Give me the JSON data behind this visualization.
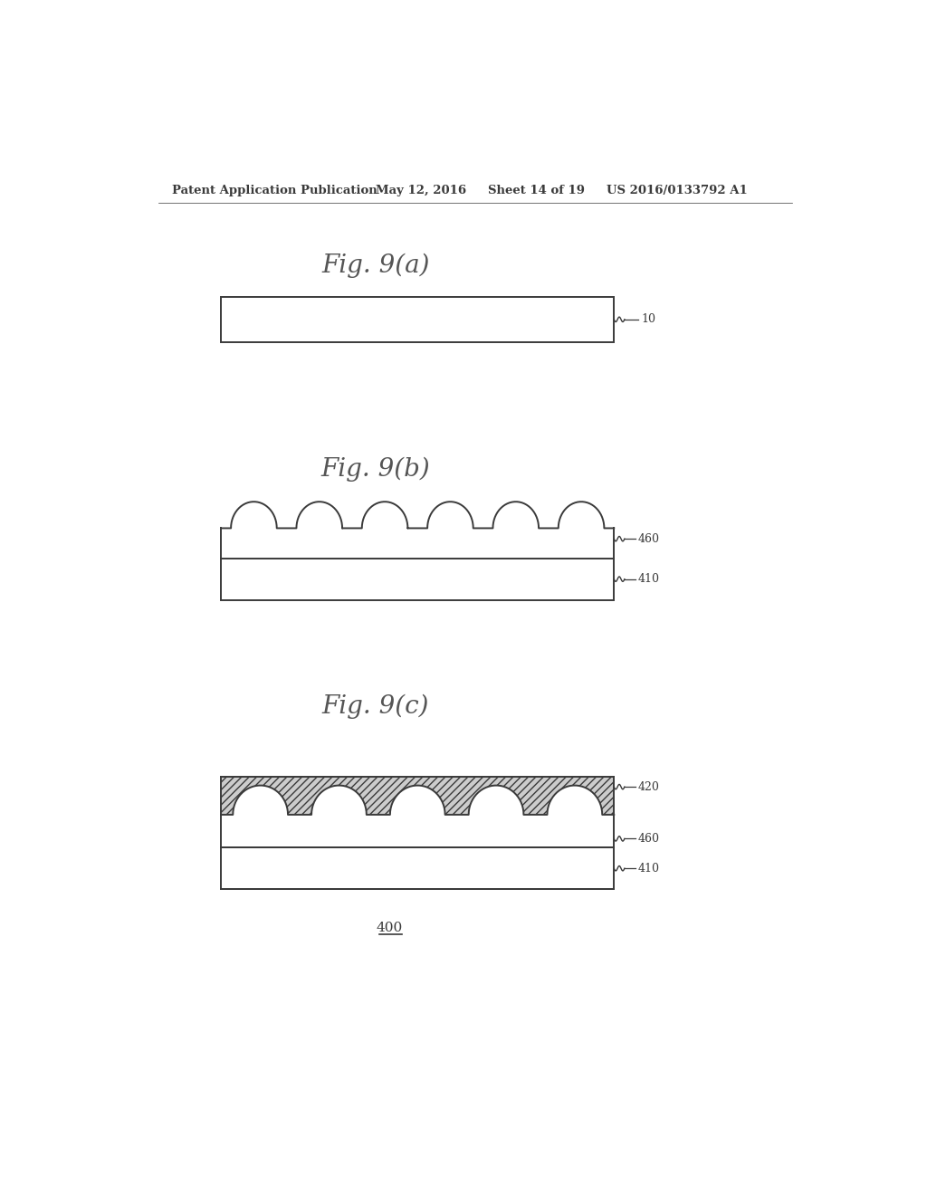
{
  "bg_color": "#ffffff",
  "header_text": "Patent Application Publication",
  "header_date": "May 12, 2016",
  "header_sheet": "Sheet 14 of 19",
  "header_patent": "US 2016/0133792 A1",
  "fig_a_title": "Fig. 9(a)",
  "fig_b_title": "Fig. 9(b)",
  "fig_c_title": "Fig. 9(c)",
  "label_10": "10",
  "label_460": "460",
  "label_410": "410",
  "label_420": "420",
  "label_400": "400",
  "line_color": "#3a3a3a",
  "text_color": "#555555",
  "hatch_color": "#888888"
}
